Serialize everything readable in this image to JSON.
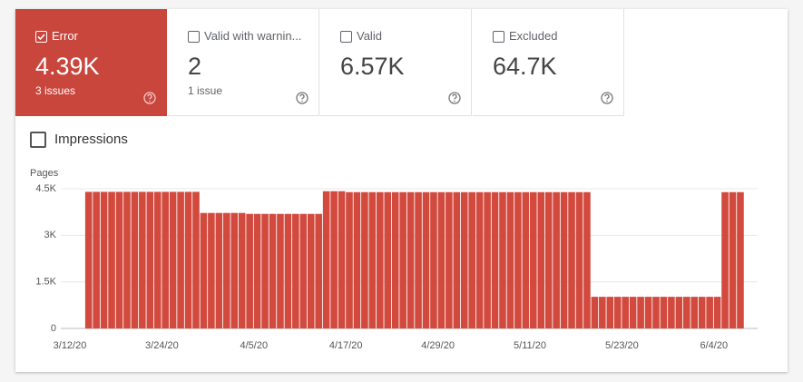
{
  "cards": [
    {
      "label": "Error",
      "value": "4.39K",
      "sub": "3 issues",
      "checked": true,
      "selected": true
    },
    {
      "label": "Valid with warnin...",
      "value": "2",
      "sub": "1 issue",
      "checked": false,
      "selected": false
    },
    {
      "label": "Valid",
      "value": "6.57K",
      "checked": false,
      "selected": false
    },
    {
      "label": "Excluded",
      "value": "64.7K",
      "checked": false,
      "selected": false
    }
  ],
  "impressions": {
    "label": "Impressions",
    "checked": false
  },
  "chart_data": {
    "type": "bar",
    "ylabel": "Pages",
    "color": "#d2493e",
    "grid": true,
    "ylim": [
      0,
      4500
    ],
    "yticks": [
      0,
      {
        "value": 1500,
        "label": "1.5K"
      },
      {
        "value": 3000,
        "label": "3K"
      },
      {
        "value": 4500,
        "label": "4.5K"
      }
    ],
    "categories": [
      "3/12/20",
      null,
      null,
      null,
      null,
      null,
      null,
      null,
      null,
      null,
      null,
      null,
      "3/24/20",
      null,
      null,
      null,
      null,
      null,
      null,
      null,
      null,
      null,
      null,
      null,
      "4/5/20",
      null,
      null,
      null,
      null,
      null,
      null,
      null,
      null,
      null,
      null,
      null,
      "4/17/20",
      null,
      null,
      null,
      null,
      null,
      null,
      null,
      null,
      null,
      null,
      null,
      "4/29/20",
      null,
      null,
      null,
      null,
      null,
      null,
      null,
      null,
      null,
      null,
      null,
      "5/11/20",
      null,
      null,
      null,
      null,
      null,
      null,
      null,
      null,
      null,
      null,
      null,
      "5/23/20",
      null,
      null,
      null,
      null,
      null,
      null,
      null,
      null,
      null,
      null,
      null,
      "6/4/20",
      null,
      null,
      null
    ],
    "values": [
      null,
      null,
      4400,
      4400,
      4400,
      4400,
      4400,
      4400,
      4400,
      4400,
      4400,
      4400,
      4400,
      4400,
      4400,
      4400,
      4400,
      3720,
      3720,
      3720,
      3720,
      3720,
      3720,
      3690,
      3690,
      3690,
      3690,
      3690,
      3690,
      3690,
      3690,
      3690,
      3690,
      4420,
      4420,
      4420,
      4390,
      4390,
      4390,
      4390,
      4390,
      4390,
      4390,
      4390,
      4390,
      4390,
      4390,
      4390,
      4390,
      4390,
      4390,
      4390,
      4390,
      4390,
      4390,
      4390,
      4390,
      4390,
      4390,
      4390,
      4390,
      4390,
      4390,
      4390,
      4390,
      4390,
      4390,
      4390,
      1020,
      1020,
      1020,
      1020,
      1020,
      1020,
      1020,
      1020,
      1020,
      1020,
      1020,
      1020,
      1020,
      1020,
      1020,
      1020,
      1020,
      4390,
      4390,
      4390
    ]
  }
}
